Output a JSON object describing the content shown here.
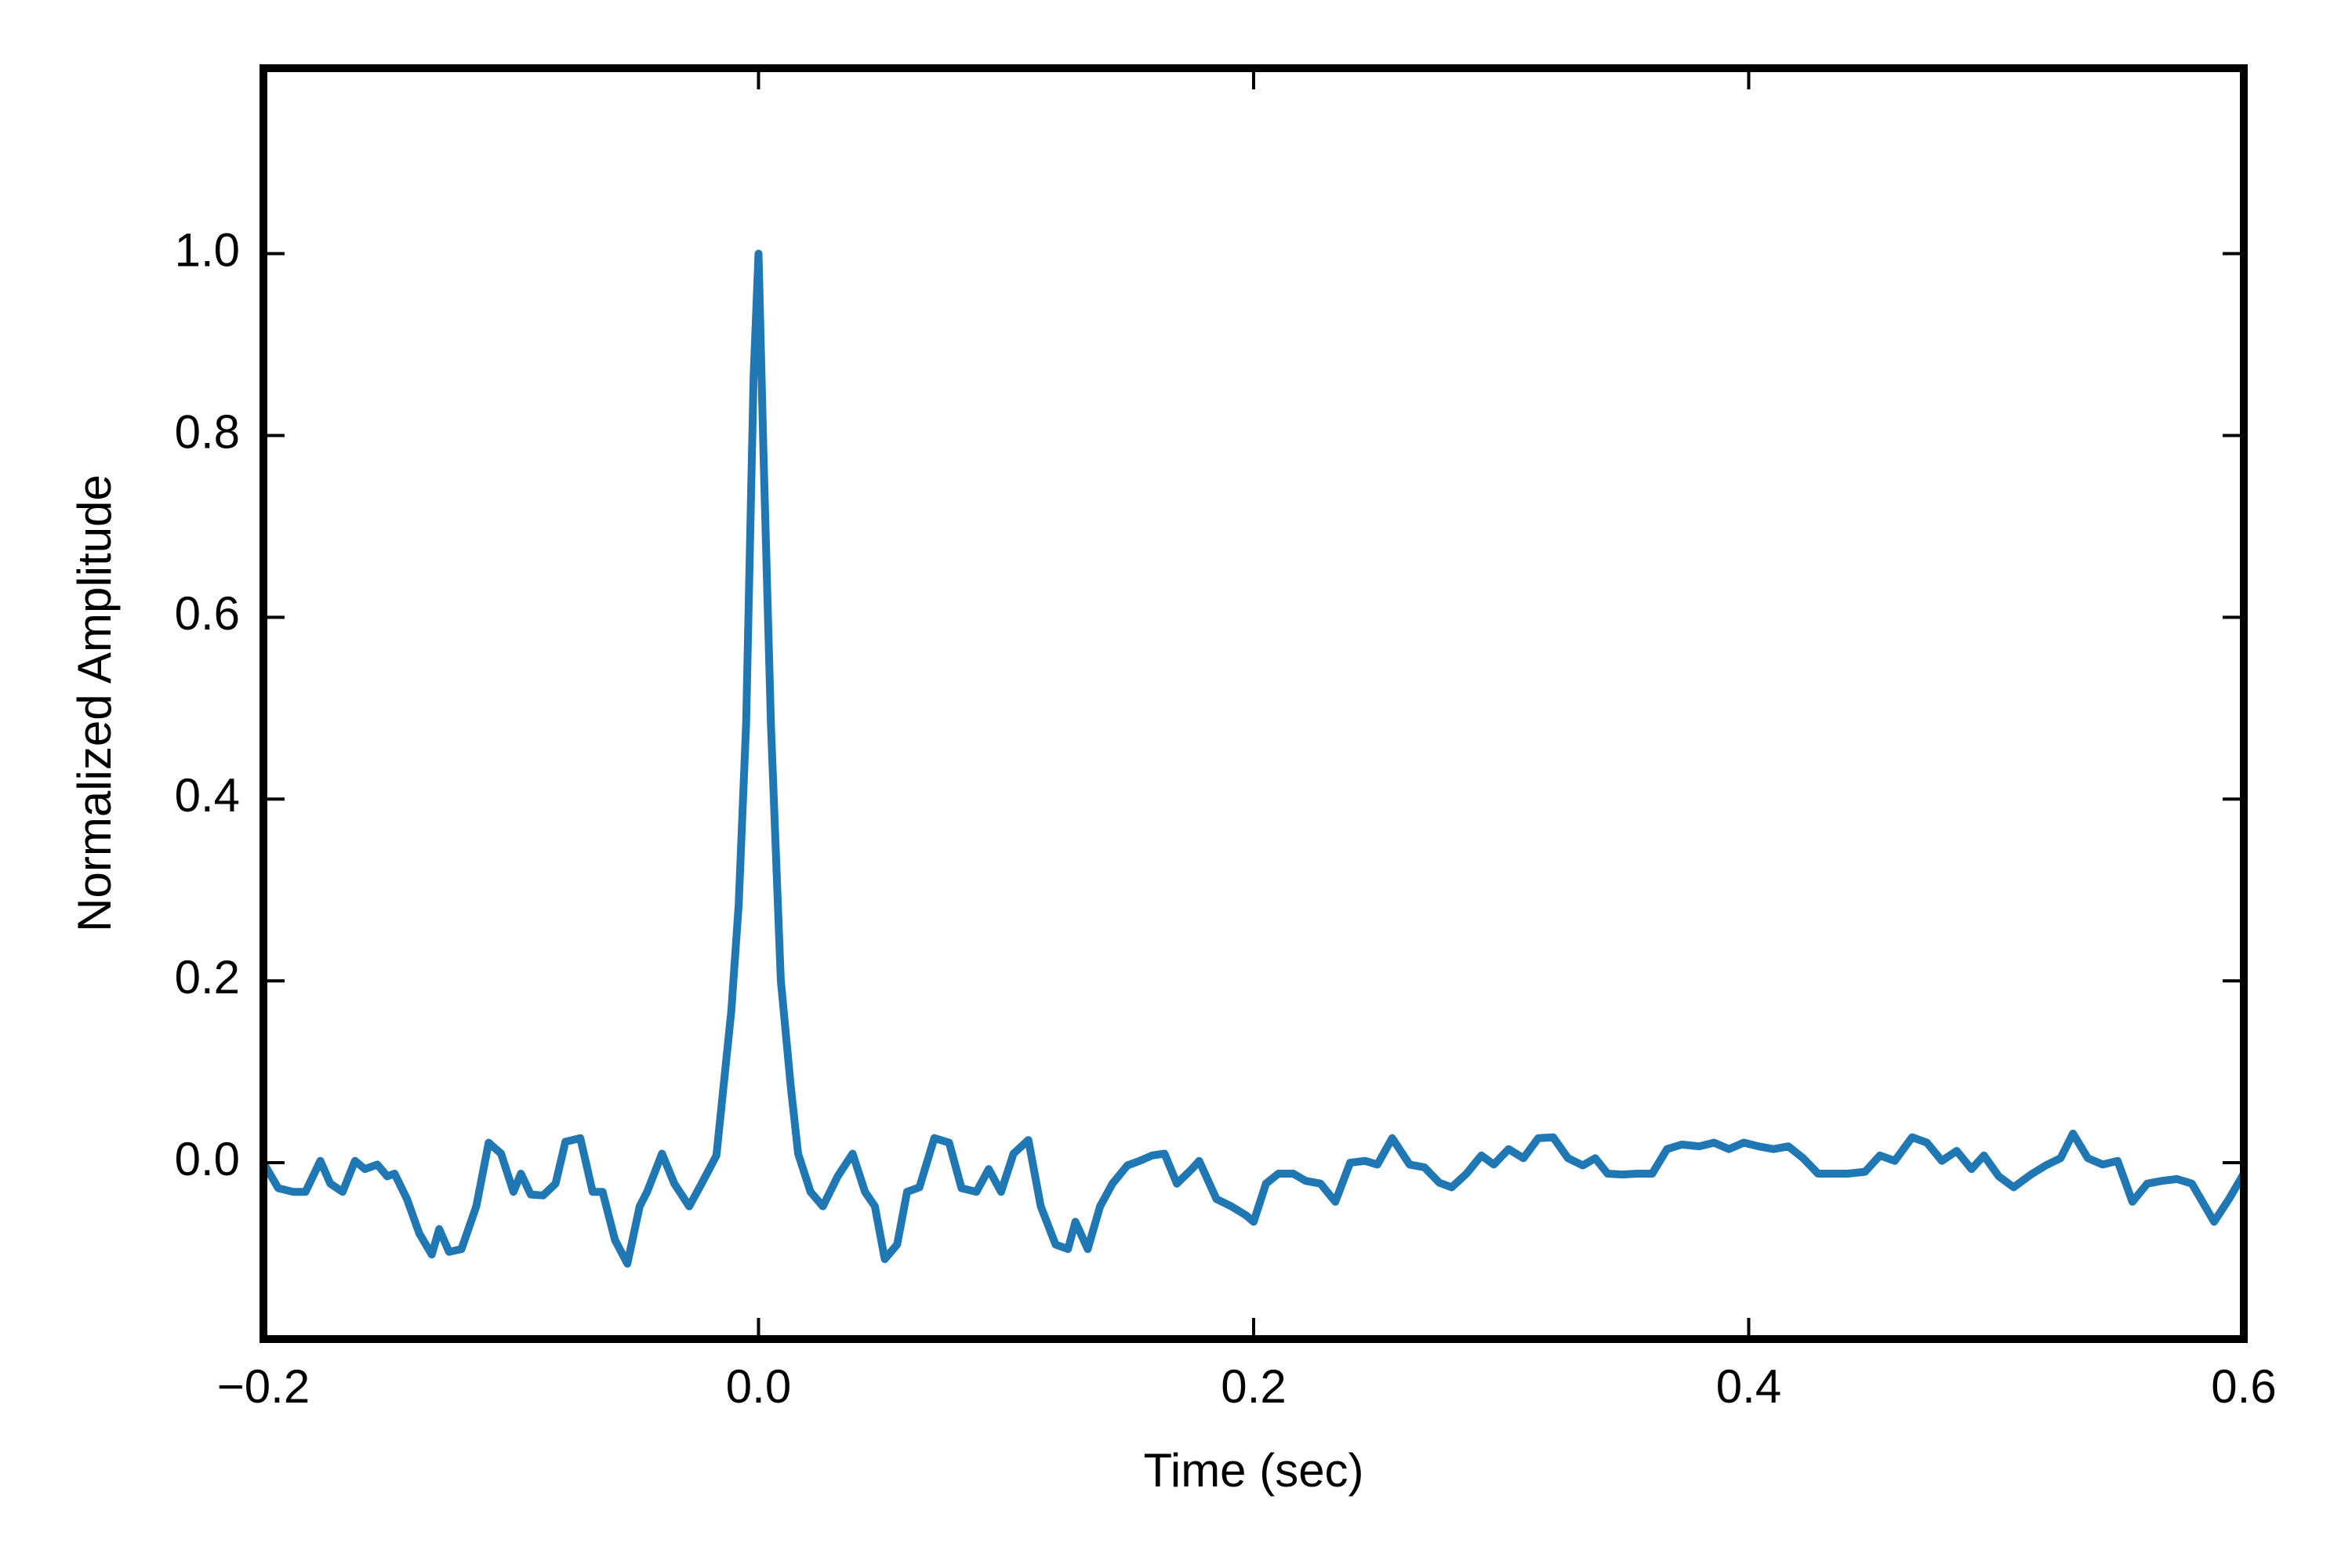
{
  "chart_data": {
    "type": "line",
    "xlabel": "Time (sec)",
    "ylabel": "Normalized Amplitude",
    "color": "#1f77b4",
    "xlim": [
      -0.2,
      0.6
    ],
    "ylim": [
      -0.194,
      1.204
    ],
    "xticks": [
      {
        "value": -0.2,
        "label": "−0.2"
      },
      {
        "value": 0.0,
        "label": "0.0"
      },
      0.2,
      0.4,
      0.6
    ],
    "yticks": [
      {
        "value": 0.0,
        "label": "0.0"
      },
      0.2,
      0.4,
      0.6,
      0.8,
      {
        "value": 1.0,
        "label": "1.0"
      }
    ],
    "x": [
      -0.2,
      -0.194,
      -0.188,
      -0.183,
      -0.177,
      -0.173,
      -0.168,
      -0.163,
      -0.159,
      -0.154,
      -0.15,
      -0.147,
      -0.142,
      -0.137,
      -0.132,
      -0.129,
      -0.125,
      -0.12,
      -0.114,
      -0.109,
      -0.104,
      -0.099,
      -0.096,
      -0.092,
      -0.087,
      -0.082,
      -0.078,
      -0.072,
      -0.067,
      -0.063,
      -0.058,
      -0.053,
      -0.048,
      -0.045,
      -0.039,
      -0.034,
      -0.028,
      -0.023,
      -0.017,
      -0.011,
      -0.008,
      -0.005,
      -0.002,
      0.0,
      0.002,
      0.005,
      0.009,
      0.013,
      0.016,
      0.021,
      0.026,
      0.032,
      0.038,
      0.043,
      0.047,
      0.051,
      0.056,
      0.06,
      0.065,
      0.071,
      0.077,
      0.082,
      0.088,
      0.093,
      0.098,
      0.103,
      0.109,
      0.114,
      0.12,
      0.125,
      0.128,
      0.133,
      0.138,
      0.143,
      0.149,
      0.154,
      0.159,
      0.164,
      0.169,
      0.175,
      0.178,
      0.185,
      0.191,
      0.197,
      0.2,
      0.205,
      0.21,
      0.216,
      0.221,
      0.227,
      0.233,
      0.239,
      0.245,
      0.25,
      0.256,
      0.263,
      0.269,
      0.275,
      0.28,
      0.286,
      0.292,
      0.297,
      0.303,
      0.309,
      0.315,
      0.321,
      0.327,
      0.333,
      0.338,
      0.343,
      0.349,
      0.355,
      0.361,
      0.367,
      0.373,
      0.38,
      0.386,
      0.392,
      0.398,
      0.404,
      0.41,
      0.416,
      0.422,
      0.428,
      0.434,
      0.44,
      0.447,
      0.453,
      0.459,
      0.466,
      0.472,
      0.478,
      0.484,
      0.49,
      0.495,
      0.501,
      0.507,
      0.514,
      0.52,
      0.526,
      0.531,
      0.537,
      0.543,
      0.549,
      0.555,
      0.561,
      0.567,
      0.573,
      0.579,
      0.588,
      0.594,
      0.6
    ],
    "values": [
      0,
      -0.028,
      -0.032,
      -0.032,
      0.002,
      -0.023,
      -0.032,
      0.002,
      -0.007,
      -0.002,
      -0.015,
      -0.012,
      -0.04,
      -0.078,
      -0.101,
      -0.073,
      -0.098,
      -0.095,
      -0.048,
      0.022,
      0.01,
      -0.032,
      -0.012,
      -0.035,
      -0.036,
      -0.023,
      0.023,
      0.027,
      -0.032,
      -0.032,
      -0.085,
      -0.111,
      -0.048,
      -0.032,
      0.01,
      -0.023,
      -0.048,
      -0.023,
      0.008,
      0.167,
      0.284,
      0.483,
      0.864,
      1.0,
      0.781,
      0.483,
      0.201,
      0.085,
      0.01,
      -0.032,
      -0.048,
      -0.015,
      0.01,
      -0.032,
      -0.048,
      -0.106,
      -0.09,
      -0.032,
      -0.027,
      0.027,
      0.022,
      -0.028,
      -0.032,
      -0.007,
      -0.032,
      0.01,
      0.025,
      -0.048,
      -0.09,
      -0.095,
      -0.065,
      -0.095,
      -0.048,
      -0.023,
      -0.003,
      0.002,
      0.008,
      0.01,
      -0.023,
      -0.007,
      0.002,
      -0.04,
      -0.048,
      -0.058,
      -0.065,
      -0.023,
      -0.012,
      -0.012,
      -0.02,
      -0.023,
      -0.043,
      0,
      0.002,
      -0.002,
      0.027,
      -0.002,
      -0.005,
      -0.022,
      -0.027,
      -0.012,
      0.008,
      -0.002,
      0.015,
      0.005,
      0.027,
      0.028,
      0.005,
      -0.003,
      0.005,
      -0.012,
      -0.013,
      -0.012,
      -0.012,
      0.015,
      0.02,
      0.018,
      0.022,
      0.015,
      0.022,
      0.018,
      0.015,
      0.018,
      0.005,
      -0.012,
      -0.012,
      -0.012,
      -0.01,
      0.008,
      0.002,
      0.028,
      0.022,
      0.002,
      0.013,
      -0.007,
      0.008,
      -0.015,
      -0.027,
      -0.013,
      -0.003,
      0.005,
      0.032,
      0.005,
      -0.002,
      0.002,
      -0.043,
      -0.023,
      -0.02,
      -0.018,
      -0.023,
      -0.065,
      -0.04,
      -0.012
    ]
  }
}
